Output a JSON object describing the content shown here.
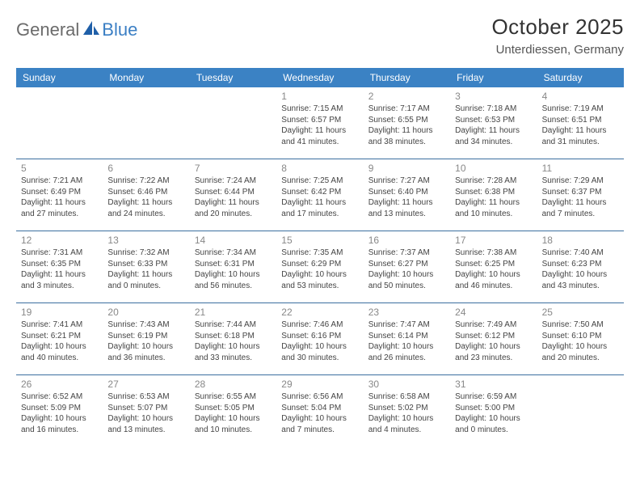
{
  "logo": {
    "part1": "General",
    "part2": "Blue"
  },
  "title": {
    "month": "October 2025",
    "location": "Unterdiessen, Germany"
  },
  "colors": {
    "header_bg": "#3b82c4",
    "header_text": "#ffffff",
    "week_border": "#3b6fa0",
    "daynum": "#888888",
    "body_text": "#444444",
    "logo_gray": "#6b6b6b",
    "logo_blue": "#3b7fc4"
  },
  "daynames": [
    "Sunday",
    "Monday",
    "Tuesday",
    "Wednesday",
    "Thursday",
    "Friday",
    "Saturday"
  ],
  "weeks": [
    [
      {
        "num": "",
        "l1": "",
        "l2": "",
        "l3": "",
        "l4": ""
      },
      {
        "num": "",
        "l1": "",
        "l2": "",
        "l3": "",
        "l4": ""
      },
      {
        "num": "",
        "l1": "",
        "l2": "",
        "l3": "",
        "l4": ""
      },
      {
        "num": "1",
        "l1": "Sunrise: 7:15 AM",
        "l2": "Sunset: 6:57 PM",
        "l3": "Daylight: 11 hours",
        "l4": "and 41 minutes."
      },
      {
        "num": "2",
        "l1": "Sunrise: 7:17 AM",
        "l2": "Sunset: 6:55 PM",
        "l3": "Daylight: 11 hours",
        "l4": "and 38 minutes."
      },
      {
        "num": "3",
        "l1": "Sunrise: 7:18 AM",
        "l2": "Sunset: 6:53 PM",
        "l3": "Daylight: 11 hours",
        "l4": "and 34 minutes."
      },
      {
        "num": "4",
        "l1": "Sunrise: 7:19 AM",
        "l2": "Sunset: 6:51 PM",
        "l3": "Daylight: 11 hours",
        "l4": "and 31 minutes."
      }
    ],
    [
      {
        "num": "5",
        "l1": "Sunrise: 7:21 AM",
        "l2": "Sunset: 6:49 PM",
        "l3": "Daylight: 11 hours",
        "l4": "and 27 minutes."
      },
      {
        "num": "6",
        "l1": "Sunrise: 7:22 AM",
        "l2": "Sunset: 6:46 PM",
        "l3": "Daylight: 11 hours",
        "l4": "and 24 minutes."
      },
      {
        "num": "7",
        "l1": "Sunrise: 7:24 AM",
        "l2": "Sunset: 6:44 PM",
        "l3": "Daylight: 11 hours",
        "l4": "and 20 minutes."
      },
      {
        "num": "8",
        "l1": "Sunrise: 7:25 AM",
        "l2": "Sunset: 6:42 PM",
        "l3": "Daylight: 11 hours",
        "l4": "and 17 minutes."
      },
      {
        "num": "9",
        "l1": "Sunrise: 7:27 AM",
        "l2": "Sunset: 6:40 PM",
        "l3": "Daylight: 11 hours",
        "l4": "and 13 minutes."
      },
      {
        "num": "10",
        "l1": "Sunrise: 7:28 AM",
        "l2": "Sunset: 6:38 PM",
        "l3": "Daylight: 11 hours",
        "l4": "and 10 minutes."
      },
      {
        "num": "11",
        "l1": "Sunrise: 7:29 AM",
        "l2": "Sunset: 6:37 PM",
        "l3": "Daylight: 11 hours",
        "l4": "and 7 minutes."
      }
    ],
    [
      {
        "num": "12",
        "l1": "Sunrise: 7:31 AM",
        "l2": "Sunset: 6:35 PM",
        "l3": "Daylight: 11 hours",
        "l4": "and 3 minutes."
      },
      {
        "num": "13",
        "l1": "Sunrise: 7:32 AM",
        "l2": "Sunset: 6:33 PM",
        "l3": "Daylight: 11 hours",
        "l4": "and 0 minutes."
      },
      {
        "num": "14",
        "l1": "Sunrise: 7:34 AM",
        "l2": "Sunset: 6:31 PM",
        "l3": "Daylight: 10 hours",
        "l4": "and 56 minutes."
      },
      {
        "num": "15",
        "l1": "Sunrise: 7:35 AM",
        "l2": "Sunset: 6:29 PM",
        "l3": "Daylight: 10 hours",
        "l4": "and 53 minutes."
      },
      {
        "num": "16",
        "l1": "Sunrise: 7:37 AM",
        "l2": "Sunset: 6:27 PM",
        "l3": "Daylight: 10 hours",
        "l4": "and 50 minutes."
      },
      {
        "num": "17",
        "l1": "Sunrise: 7:38 AM",
        "l2": "Sunset: 6:25 PM",
        "l3": "Daylight: 10 hours",
        "l4": "and 46 minutes."
      },
      {
        "num": "18",
        "l1": "Sunrise: 7:40 AM",
        "l2": "Sunset: 6:23 PM",
        "l3": "Daylight: 10 hours",
        "l4": "and 43 minutes."
      }
    ],
    [
      {
        "num": "19",
        "l1": "Sunrise: 7:41 AM",
        "l2": "Sunset: 6:21 PM",
        "l3": "Daylight: 10 hours",
        "l4": "and 40 minutes."
      },
      {
        "num": "20",
        "l1": "Sunrise: 7:43 AM",
        "l2": "Sunset: 6:19 PM",
        "l3": "Daylight: 10 hours",
        "l4": "and 36 minutes."
      },
      {
        "num": "21",
        "l1": "Sunrise: 7:44 AM",
        "l2": "Sunset: 6:18 PM",
        "l3": "Daylight: 10 hours",
        "l4": "and 33 minutes."
      },
      {
        "num": "22",
        "l1": "Sunrise: 7:46 AM",
        "l2": "Sunset: 6:16 PM",
        "l3": "Daylight: 10 hours",
        "l4": "and 30 minutes."
      },
      {
        "num": "23",
        "l1": "Sunrise: 7:47 AM",
        "l2": "Sunset: 6:14 PM",
        "l3": "Daylight: 10 hours",
        "l4": "and 26 minutes."
      },
      {
        "num": "24",
        "l1": "Sunrise: 7:49 AM",
        "l2": "Sunset: 6:12 PM",
        "l3": "Daylight: 10 hours",
        "l4": "and 23 minutes."
      },
      {
        "num": "25",
        "l1": "Sunrise: 7:50 AM",
        "l2": "Sunset: 6:10 PM",
        "l3": "Daylight: 10 hours",
        "l4": "and 20 minutes."
      }
    ],
    [
      {
        "num": "26",
        "l1": "Sunrise: 6:52 AM",
        "l2": "Sunset: 5:09 PM",
        "l3": "Daylight: 10 hours",
        "l4": "and 16 minutes."
      },
      {
        "num": "27",
        "l1": "Sunrise: 6:53 AM",
        "l2": "Sunset: 5:07 PM",
        "l3": "Daylight: 10 hours",
        "l4": "and 13 minutes."
      },
      {
        "num": "28",
        "l1": "Sunrise: 6:55 AM",
        "l2": "Sunset: 5:05 PM",
        "l3": "Daylight: 10 hours",
        "l4": "and 10 minutes."
      },
      {
        "num": "29",
        "l1": "Sunrise: 6:56 AM",
        "l2": "Sunset: 5:04 PM",
        "l3": "Daylight: 10 hours",
        "l4": "and 7 minutes."
      },
      {
        "num": "30",
        "l1": "Sunrise: 6:58 AM",
        "l2": "Sunset: 5:02 PM",
        "l3": "Daylight: 10 hours",
        "l4": "and 4 minutes."
      },
      {
        "num": "31",
        "l1": "Sunrise: 6:59 AM",
        "l2": "Sunset: 5:00 PM",
        "l3": "Daylight: 10 hours",
        "l4": "and 0 minutes."
      },
      {
        "num": "",
        "l1": "",
        "l2": "",
        "l3": "",
        "l4": ""
      }
    ]
  ]
}
